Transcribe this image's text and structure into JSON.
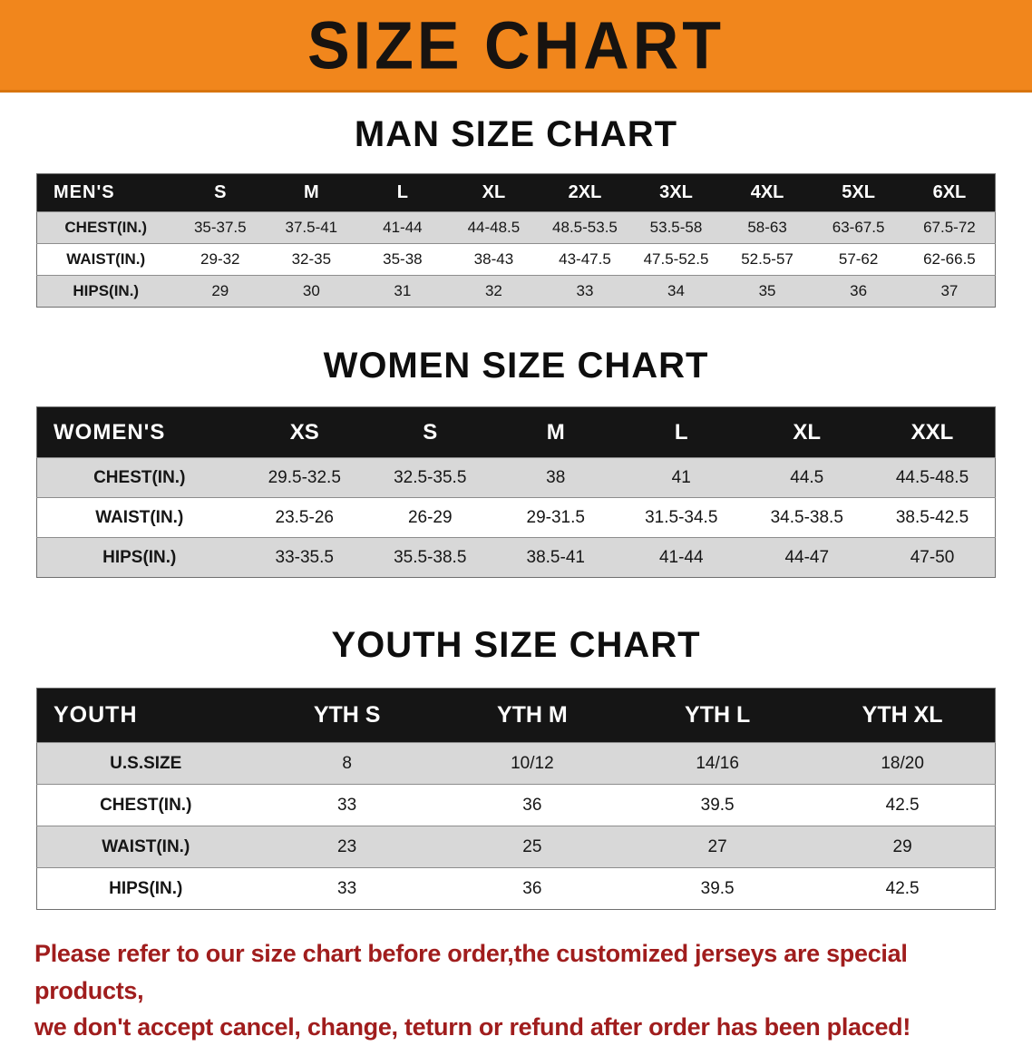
{
  "banner": {
    "title": "SIZE CHART",
    "bg": "#F1861C"
  },
  "sections": [
    {
      "heading": "MAN SIZE CHART",
      "table": {
        "header_label": "MEN'S",
        "columns": [
          "S",
          "M",
          "L",
          "XL",
          "2XL",
          "3XL",
          "4XL",
          "5XL",
          "6XL"
        ],
        "rows": [
          {
            "label": "CHEST(IN.)",
            "values": [
              "35-37.5",
              "37.5-41",
              "41-44",
              "44-48.5",
              "48.5-53.5",
              "53.5-58",
              "58-63",
              "63-67.5",
              "67.5-72"
            ]
          },
          {
            "label": "WAIST(IN.)",
            "values": [
              "29-32",
              "32-35",
              "35-38",
              "38-43",
              "43-47.5",
              "47.5-52.5",
              "52.5-57",
              "57-62",
              "62-66.5"
            ]
          },
          {
            "label": "HIPS(IN.)",
            "values": [
              "29",
              "30",
              "31",
              "32",
              "33",
              "34",
              "35",
              "36",
              "37"
            ]
          }
        ]
      }
    },
    {
      "heading": "WOMEN SIZE CHART",
      "table": {
        "header_label": "WOMEN'S",
        "columns": [
          "XS",
          "S",
          "M",
          "L",
          "XL",
          "XXL"
        ],
        "rows": [
          {
            "label": "CHEST(IN.)",
            "values": [
              "29.5-32.5",
              "32.5-35.5",
              "38",
              "41",
              "44.5",
              "44.5-48.5"
            ]
          },
          {
            "label": "WAIST(IN.)",
            "values": [
              "23.5-26",
              "26-29",
              "29-31.5",
              "31.5-34.5",
              "34.5-38.5",
              "38.5-42.5"
            ]
          },
          {
            "label": "HIPS(IN.)",
            "values": [
              "33-35.5",
              "35.5-38.5",
              "38.5-41",
              "41-44",
              "44-47",
              "47-50"
            ]
          }
        ]
      }
    },
    {
      "heading": "YOUTH SIZE CHART",
      "table": {
        "header_label": "YOUTH",
        "columns": [
          "YTH S",
          "YTH M",
          "YTH L",
          "YTH XL"
        ],
        "rows": [
          {
            "label": "U.S.SIZE",
            "values": [
              "8",
              "10/12",
              "14/16",
              "18/20"
            ]
          },
          {
            "label": "CHEST(IN.)",
            "values": [
              "33",
              "36",
              "39.5",
              "42.5"
            ]
          },
          {
            "label": "WAIST(IN.)",
            "values": [
              "23",
              "25",
              "27",
              "29"
            ]
          },
          {
            "label": "HIPS(IN.)",
            "values": [
              "33",
              "36",
              "39.5",
              "42.5"
            ]
          }
        ]
      }
    }
  ],
  "footer": {
    "line1": "Please refer to our size chart before order,the customized jerseys are special products,",
    "line2": "we don't accept cancel, change, teturn or refund after order has been placed!",
    "color": "#A01D1D"
  }
}
